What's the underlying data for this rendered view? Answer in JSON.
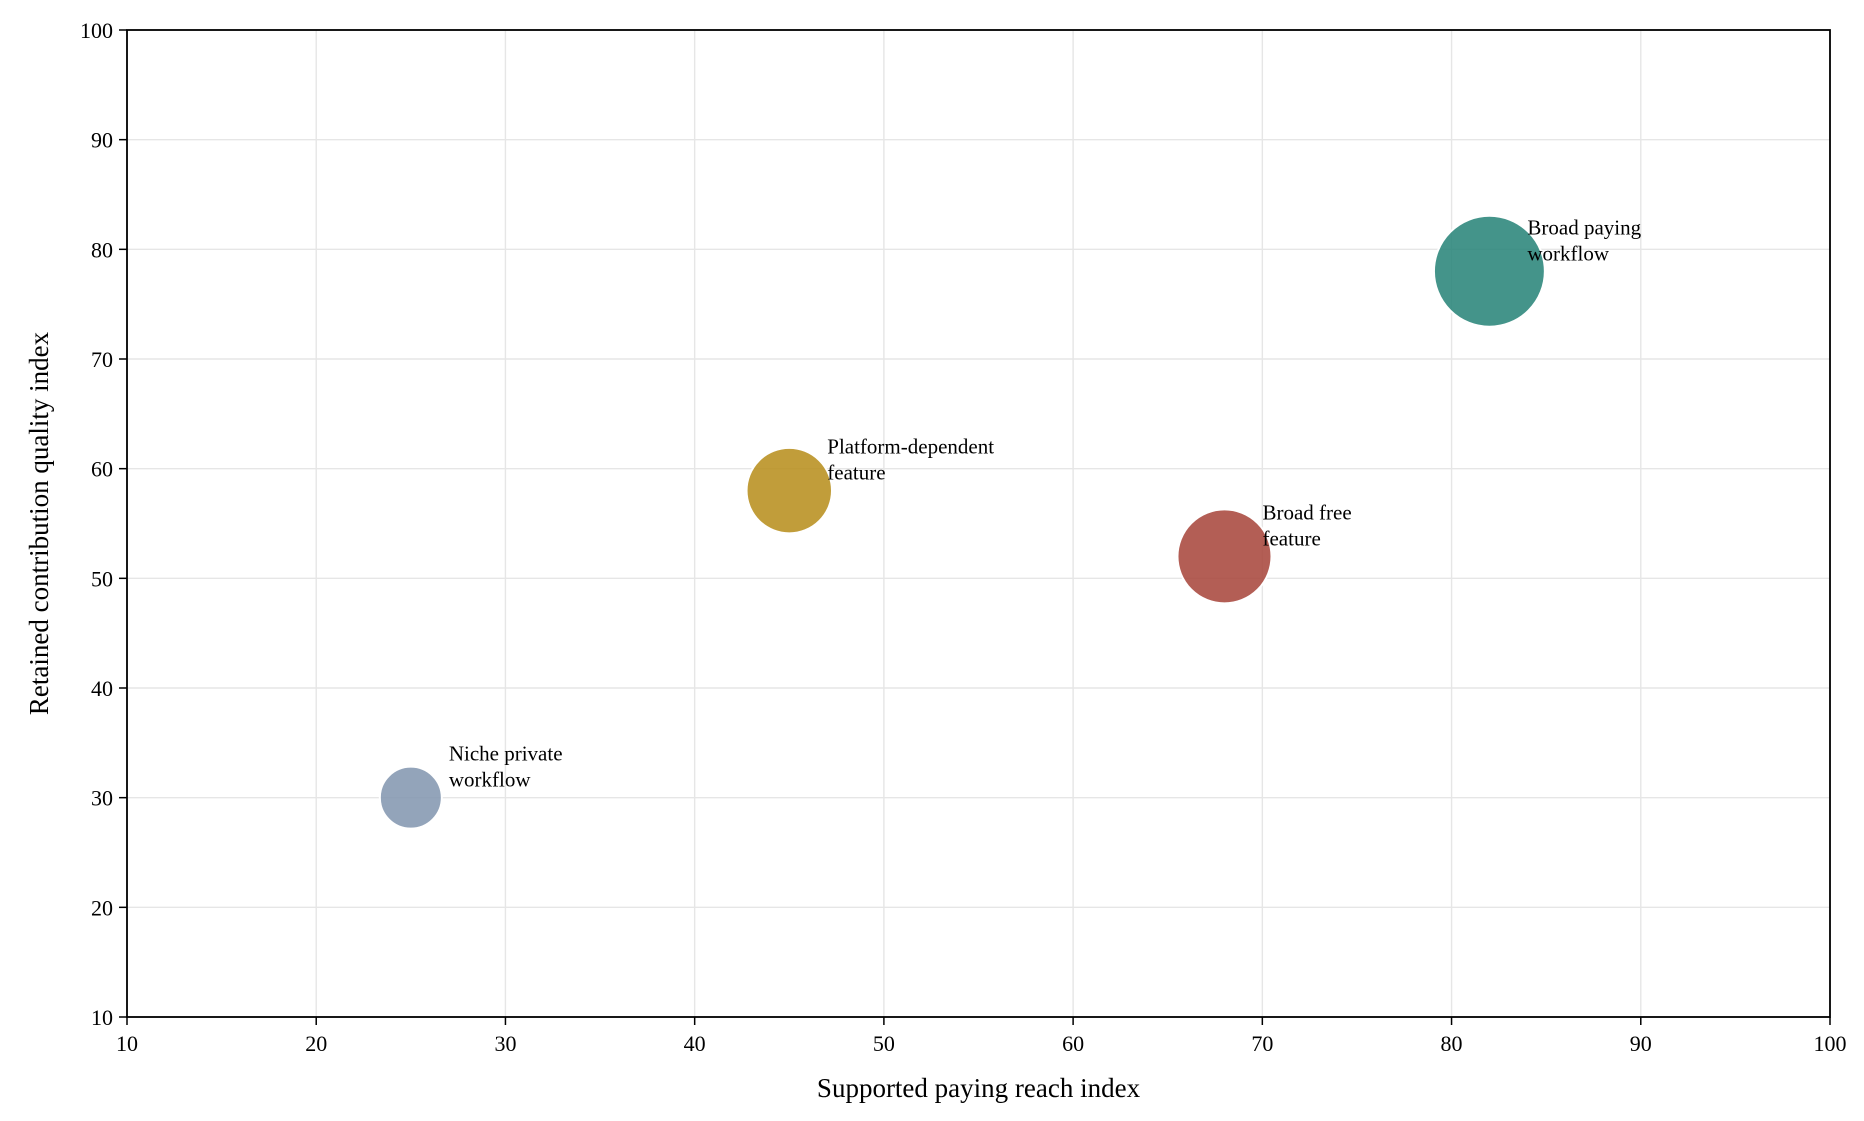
{
  "chart_data": {
    "type": "scatter",
    "title": "",
    "xlabel": "Supported paying reach index",
    "ylabel": "Retained contribution quality index",
    "xlim": [
      10,
      100
    ],
    "ylim": [
      10,
      100
    ],
    "xticks": [
      "10",
      "20",
      "30",
      "40",
      "50",
      "60",
      "70",
      "80",
      "90",
      "100"
    ],
    "yticks": [
      "10",
      "20",
      "30",
      "40",
      "50",
      "60",
      "70",
      "80",
      "90",
      "100"
    ],
    "grid": true,
    "legend": "none",
    "points": [
      {
        "label_lines": [
          "Niche private",
          "workflow"
        ],
        "x": 25,
        "y": 30,
        "size": 1.0,
        "color": "#8497b0"
      },
      {
        "label_lines": [
          "Platform-dependent",
          "feature"
        ],
        "x": 45,
        "y": 58,
        "size": 1.9,
        "color": "#b8901f"
      },
      {
        "label_lines": [
          "Broad free",
          "feature"
        ],
        "x": 68,
        "y": 52,
        "size": 2.3,
        "color": "#a9483e"
      },
      {
        "label_lines": [
          "Broad paying",
          "workflow"
        ],
        "x": 82,
        "y": 78,
        "size": 3.2,
        "color": "#2a857a"
      }
    ]
  }
}
